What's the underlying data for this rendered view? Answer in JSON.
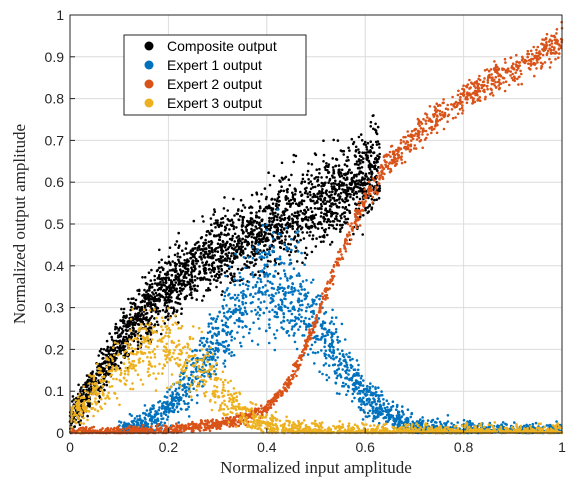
{
  "chart_data": {
    "type": "scatter",
    "title": "",
    "xlabel": "Normalized input amplitude",
    "ylabel": "Normalized output amplitude",
    "xlim": [
      0,
      1
    ],
    "ylim": [
      0,
      1
    ],
    "xticks": [
      "0",
      "0.2",
      "0.4",
      "0.6",
      "0.8",
      "1"
    ],
    "yticks": [
      "0",
      "0.1",
      "0.2",
      "0.3",
      "0.4",
      "0.5",
      "0.6",
      "0.7",
      "0.8",
      "0.9",
      "1"
    ],
    "grid": true,
    "legend_position": "top-left",
    "series": [
      {
        "name": "Composite output",
        "color": "#000000",
        "x": [
          0.0,
          0.05,
          0.1,
          0.15,
          0.2,
          0.25,
          0.3,
          0.35,
          0.4,
          0.45,
          0.5,
          0.55,
          0.6,
          0.63
        ],
        "y": [
          0.03,
          0.12,
          0.21,
          0.29,
          0.35,
          0.4,
          0.43,
          0.46,
          0.49,
          0.52,
          0.55,
          0.58,
          0.62,
          0.64
        ]
      },
      {
        "name": "Expert 1 output",
        "color": "#0072BD",
        "x": [
          0.1,
          0.15,
          0.2,
          0.25,
          0.3,
          0.35,
          0.4,
          0.45,
          0.5,
          0.55,
          0.6,
          0.65,
          0.7,
          0.75,
          0.8,
          0.9,
          1.0
        ],
        "y": [
          0.005,
          0.02,
          0.06,
          0.13,
          0.23,
          0.32,
          0.36,
          0.34,
          0.27,
          0.17,
          0.09,
          0.04,
          0.015,
          0.005,
          0.002,
          0.0,
          0.0
        ]
      },
      {
        "name": "Expert 2 output",
        "color": "#D95319",
        "x": [
          0.0,
          0.1,
          0.2,
          0.3,
          0.35,
          0.4,
          0.45,
          0.5,
          0.55,
          0.6,
          0.65,
          0.7,
          0.75,
          0.8,
          0.85,
          0.9,
          0.95,
          1.0
        ],
        "y": [
          0.0,
          0.003,
          0.008,
          0.02,
          0.035,
          0.06,
          0.13,
          0.27,
          0.43,
          0.56,
          0.65,
          0.71,
          0.76,
          0.8,
          0.84,
          0.87,
          0.9,
          0.94
        ]
      },
      {
        "name": "Expert 3 output",
        "color": "#EDB120",
        "x": [
          0.0,
          0.05,
          0.1,
          0.15,
          0.2,
          0.25,
          0.3,
          0.35,
          0.4,
          0.45,
          0.5,
          0.6,
          0.7,
          0.8,
          0.9,
          1.0
        ],
        "y": [
          0.03,
          0.1,
          0.16,
          0.2,
          0.21,
          0.18,
          0.11,
          0.05,
          0.02,
          0.008,
          0.004,
          0.002,
          0.001,
          0.0,
          0.0,
          0.0
        ]
      }
    ]
  }
}
